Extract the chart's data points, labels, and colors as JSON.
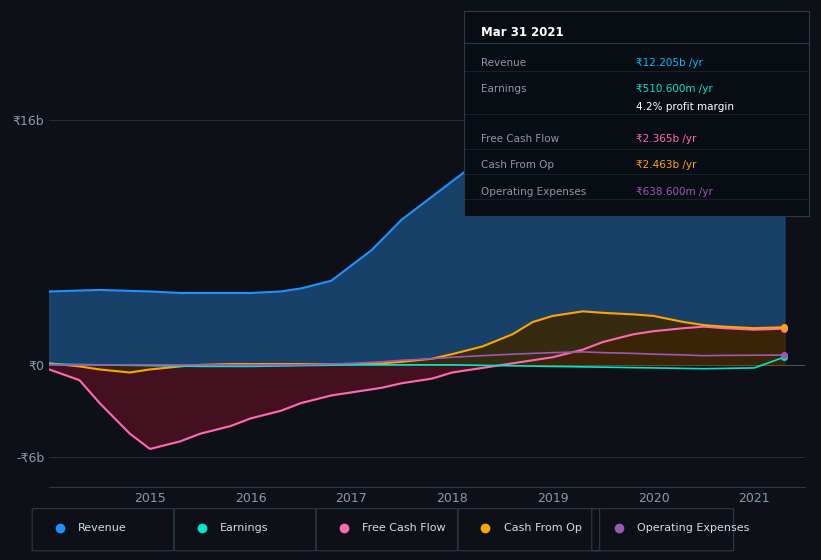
{
  "bg_color": "#0d1117",
  "plot_bg_color": "#0d1117",
  "grid_color": "#1e2a3a",
  "title_box": {
    "date": "Mar 31 2021",
    "rows": [
      {
        "label": "Revenue",
        "value": "₹12.205b /yr",
        "value_color": "#00bfff"
      },
      {
        "label": "Earnings",
        "value": "₹510.600m /yr",
        "value_color": "#00e5cc"
      },
      {
        "label": "",
        "value": "4.2% profit margin",
        "value_color": "#ffffff"
      },
      {
        "label": "Free Cash Flow",
        "value": "₹2.365b /yr",
        "value_color": "#ff69b4"
      },
      {
        "label": "Cash From Op",
        "value": "₹2.463b /yr",
        "value_color": "#ffa500"
      },
      {
        "label": "Operating Expenses",
        "value": "₹638.600m /yr",
        "value_color": "#9b59b6"
      }
    ]
  },
  "ytick_labels": [
    "₹16b",
    "₹0",
    "-₹6b"
  ],
  "ytick_values": [
    16000000000,
    0,
    -6000000000
  ],
  "ylim": [
    -8000000000,
    18000000000
  ],
  "xlim": [
    2014.0,
    2021.5
  ],
  "xtick_labels": [
    "2015",
    "2016",
    "2017",
    "2018",
    "2019",
    "2020",
    "2021"
  ],
  "xtick_positions": [
    2015,
    2016,
    2017,
    2018,
    2019,
    2020,
    2021
  ],
  "series": {
    "revenue": {
      "color": "#1e90ff",
      "fill_color": "#1a4a7a",
      "label": "Revenue",
      "x": [
        2014.0,
        2014.5,
        2015.0,
        2015.3,
        2015.5,
        2015.8,
        2016.0,
        2016.3,
        2016.5,
        2016.8,
        2017.0,
        2017.2,
        2017.5,
        2017.8,
        2018.0,
        2018.3,
        2018.6,
        2018.8,
        2019.0,
        2019.3,
        2019.5,
        2019.8,
        2020.0,
        2020.3,
        2020.5,
        2020.7,
        2021.0,
        2021.3
      ],
      "y": [
        4800000000,
        4900000000,
        4800000000,
        4700000000,
        4700000000,
        4700000000,
        4700000000,
        4800000000,
        5000000000,
        5500000000,
        6500000000,
        7500000000,
        9500000000,
        11000000000,
        12000000000,
        13500000000,
        14500000000,
        15500000000,
        16000000000,
        15800000000,
        15500000000,
        15000000000,
        14500000000,
        13500000000,
        13000000000,
        12500000000,
        11500000000,
        12200000000
      ]
    },
    "earnings": {
      "color": "#00e5cc",
      "label": "Earnings",
      "x": [
        2014.0,
        2014.5,
        2015.0,
        2015.5,
        2016.0,
        2016.5,
        2017.0,
        2017.5,
        2018.0,
        2018.5,
        2019.0,
        2019.5,
        2020.0,
        2020.5,
        2021.0,
        2021.3
      ],
      "y": [
        50000000,
        0,
        -50000000,
        -100000000,
        -100000000,
        -50000000,
        0,
        0,
        0,
        -50000000,
        -100000000,
        -150000000,
        -200000000,
        -250000000,
        -200000000,
        510000000
      ]
    },
    "free_cash_flow": {
      "color": "#ff69b4",
      "fill_color": "#4a1020",
      "label": "Free Cash Flow",
      "x": [
        2014.0,
        2014.3,
        2014.5,
        2014.8,
        2015.0,
        2015.3,
        2015.5,
        2015.8,
        2016.0,
        2016.3,
        2016.5,
        2016.8,
        2017.0,
        2017.3,
        2017.5,
        2017.8,
        2018.0,
        2018.3,
        2018.6,
        2018.8,
        2019.0,
        2019.3,
        2019.5,
        2019.8,
        2020.0,
        2020.3,
        2020.5,
        2020.7,
        2021.0,
        2021.3
      ],
      "y": [
        -300000000,
        -1000000000,
        -2500000000,
        -4500000000,
        -5500000000,
        -5000000000,
        -4500000000,
        -4000000000,
        -3500000000,
        -3000000000,
        -2500000000,
        -2000000000,
        -1800000000,
        -1500000000,
        -1200000000,
        -900000000,
        -500000000,
        -200000000,
        100000000,
        300000000,
        500000000,
        1000000000,
        1500000000,
        2000000000,
        2200000000,
        2400000000,
        2500000000,
        2400000000,
        2300000000,
        2365000000
      ]
    },
    "cash_from_op": {
      "color": "#ffa500",
      "fill_color": "#3a2800",
      "label": "Cash From Op",
      "x": [
        2014.0,
        2014.3,
        2014.5,
        2014.8,
        2015.0,
        2015.3,
        2015.5,
        2015.8,
        2016.0,
        2016.3,
        2016.5,
        2016.8,
        2017.0,
        2017.3,
        2017.5,
        2017.8,
        2018.0,
        2018.3,
        2018.6,
        2018.8,
        2019.0,
        2019.3,
        2019.5,
        2019.8,
        2020.0,
        2020.3,
        2020.5,
        2020.7,
        2021.0,
        2021.3
      ],
      "y": [
        100000000,
        -100000000,
        -300000000,
        -500000000,
        -300000000,
        -100000000,
        0,
        50000000,
        50000000,
        50000000,
        50000000,
        50000000,
        50000000,
        100000000,
        200000000,
        400000000,
        700000000,
        1200000000,
        2000000000,
        2800000000,
        3200000000,
        3500000000,
        3400000000,
        3300000000,
        3200000000,
        2800000000,
        2600000000,
        2500000000,
        2400000000,
        2463000000
      ]
    },
    "operating_expenses": {
      "color": "#9b59b6",
      "label": "Operating Expenses",
      "x": [
        2014.0,
        2014.5,
        2015.0,
        2015.5,
        2016.0,
        2016.5,
        2017.0,
        2017.3,
        2017.5,
        2017.8,
        2018.0,
        2018.3,
        2018.6,
        2018.8,
        2019.0,
        2019.3,
        2019.5,
        2019.8,
        2020.0,
        2020.3,
        2020.5,
        2020.7,
        2021.0,
        2021.3
      ],
      "y": [
        0,
        0,
        0,
        0,
        0,
        0,
        100000000,
        200000000,
        300000000,
        400000000,
        500000000,
        600000000,
        700000000,
        750000000,
        800000000,
        850000000,
        800000000,
        750000000,
        700000000,
        650000000,
        600000000,
        620000000,
        630000000,
        638000000
      ]
    }
  },
  "legend": [
    {
      "label": "Revenue",
      "color": "#1e90ff"
    },
    {
      "label": "Earnings",
      "color": "#00e5cc"
    },
    {
      "label": "Free Cash Flow",
      "color": "#ff69b4"
    },
    {
      "label": "Cash From Op",
      "color": "#ffa500"
    },
    {
      "label": "Operating Expenses",
      "color": "#9b59b6"
    }
  ]
}
